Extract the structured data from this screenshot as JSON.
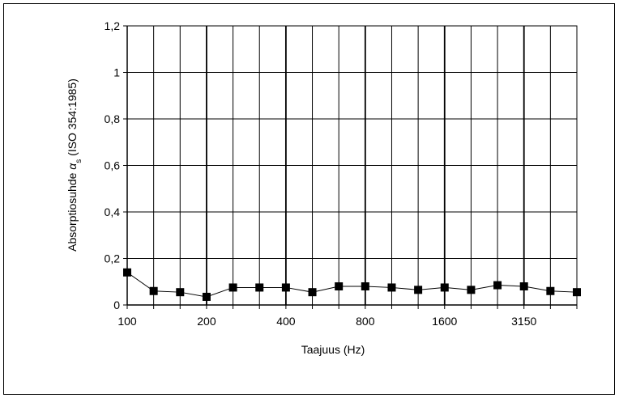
{
  "chart_data": {
    "type": "line",
    "title": "",
    "xlabel": "Taajuus  (Hz)",
    "ylabel_prefix": "Absorptiosuhde ",
    "ylabel_symbol": "α",
    "ylabel_subscript": "s",
    "ylabel_suffix": " (ISO 354:1985)",
    "categories": [
      "100",
      "125",
      "160",
      "200",
      "250",
      "315",
      "400",
      "500",
      "630",
      "800",
      "1000",
      "1250",
      "1600",
      "2000",
      "2500",
      "3150",
      "4000",
      "5000"
    ],
    "x_tick_labels": [
      "100",
      "200",
      "400",
      "800",
      "1600",
      "3150"
    ],
    "y_tick_labels": [
      "0",
      "0,2",
      "0,4",
      "0,6",
      "0,8",
      "1",
      "1,2"
    ],
    "ylim": [
      0,
      1.2
    ],
    "grid": true,
    "series": [
      {
        "values": [
          0.14,
          0.06,
          0.055,
          0.035,
          0.075,
          0.075,
          0.075,
          0.055,
          0.08,
          0.08,
          0.075,
          0.065,
          0.075,
          0.065,
          0.085,
          0.08,
          0.06,
          0.055
        ],
        "color": "#000000",
        "marker": "square"
      }
    ]
  }
}
